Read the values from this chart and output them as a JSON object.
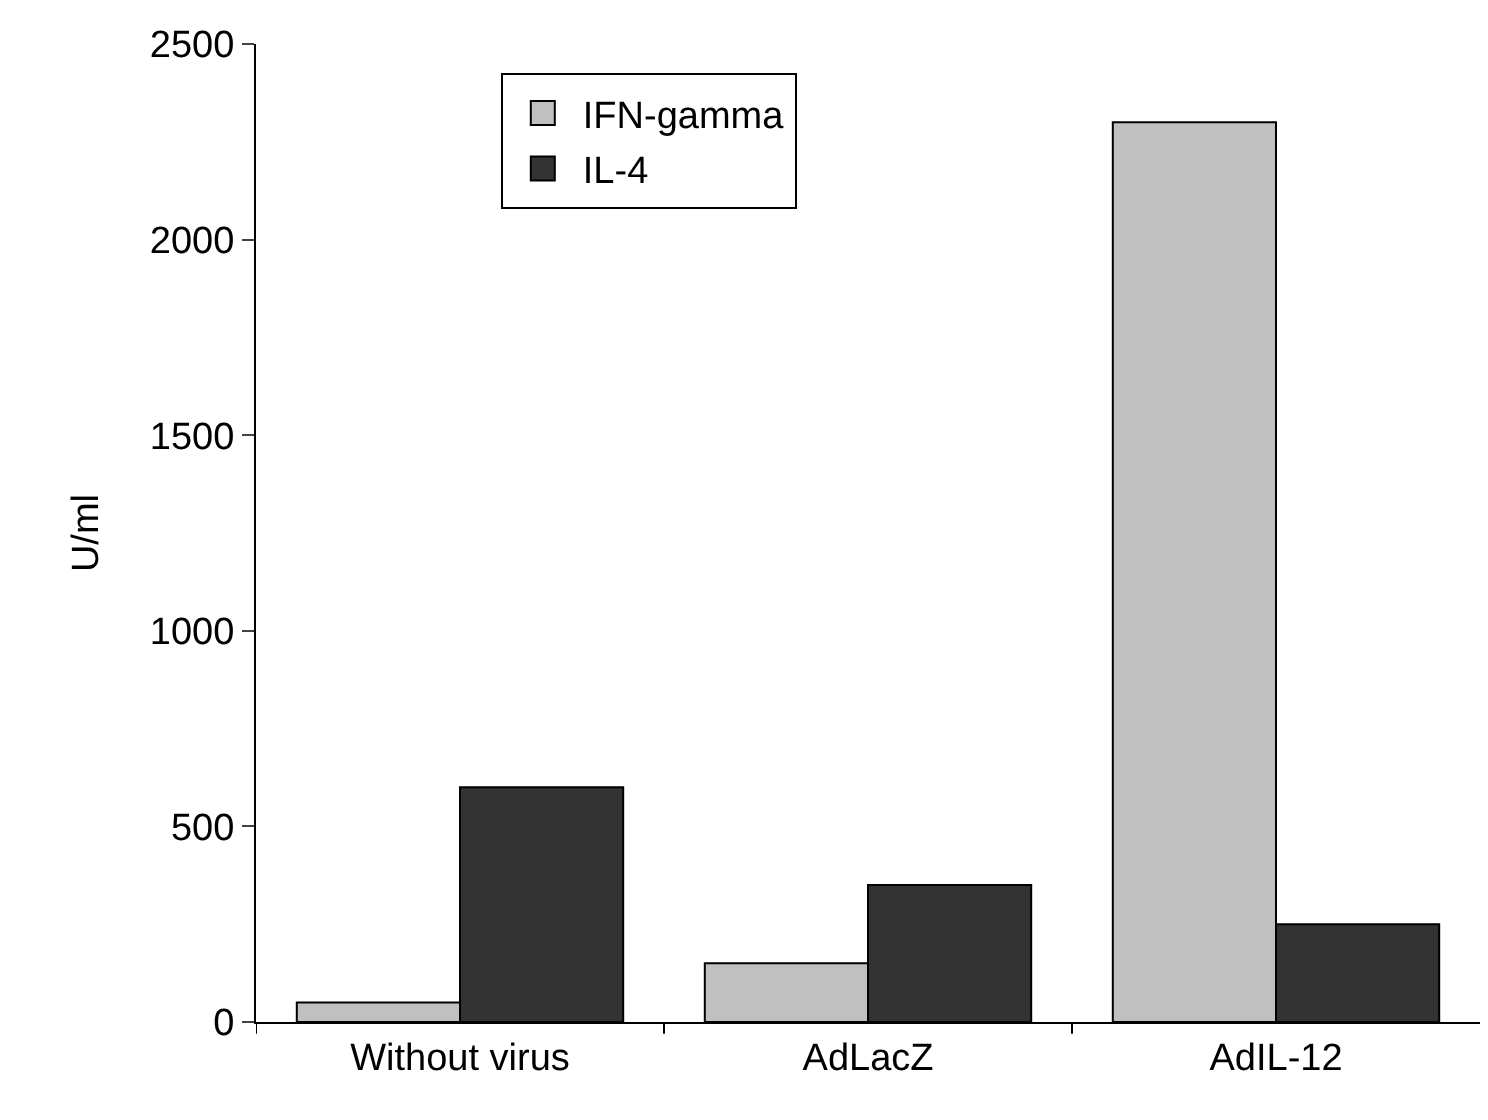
{
  "chart_data": {
    "type": "bar",
    "ylabel": "U/ml",
    "categories": [
      "Without virus",
      "AdLacZ",
      "AdIL-12"
    ],
    "series": [
      {
        "name": "IFN-gamma",
        "color": "#c0c0c0",
        "values": [
          50,
          150,
          2300
        ]
      },
      {
        "name": "IL-4",
        "color": "#333333",
        "values": [
          600,
          350,
          250
        ]
      }
    ],
    "ylim": [
      0,
      2500
    ],
    "yticks": [
      0,
      500,
      1000,
      1500,
      2000,
      2500
    ],
    "grid": false,
    "legend": "top left"
  }
}
